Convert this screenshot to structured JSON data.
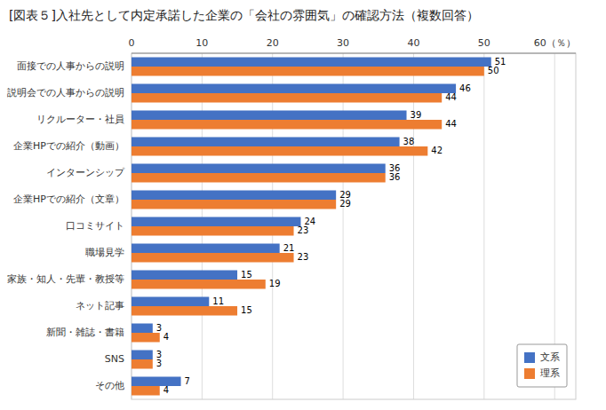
{
  "chart_data": {
    "type": "bar",
    "orientation": "horizontal",
    "title": "[図表５]入社先として内定承諾した企業の「会社の雰囲気」の確認方法（複数回答）",
    "categories": [
      "面接での人事からの説明",
      "説明会での人事からの説明",
      "リクルーター・社員",
      "企業HPでの紹介（動画）",
      "インターンシップ",
      "企業HPでの紹介（文章）",
      "口コミサイト",
      "職場見学",
      "家族・知人・先輩・教授等",
      "ネット記事",
      "新聞・雑誌・書籍",
      "SNS",
      "その他"
    ],
    "series": [
      {
        "name": "文系",
        "color": "#4472C4",
        "values": [
          51,
          46,
          39,
          38,
          36,
          29,
          24,
          21,
          15,
          11,
          3,
          3,
          7
        ]
      },
      {
        "name": "理系",
        "color": "#ED7D31",
        "values": [
          50,
          44,
          44,
          42,
          36,
          29,
          23,
          23,
          19,
          15,
          4,
          3,
          4
        ]
      }
    ],
    "xlim": [
      0,
      63
    ],
    "xticks": [
      0,
      10,
      20,
      30,
      40,
      50,
      {
        "value": 60,
        "label": "60（％）"
      }
    ],
    "grid": true,
    "legend": "lower right",
    "data_labels": true
  }
}
